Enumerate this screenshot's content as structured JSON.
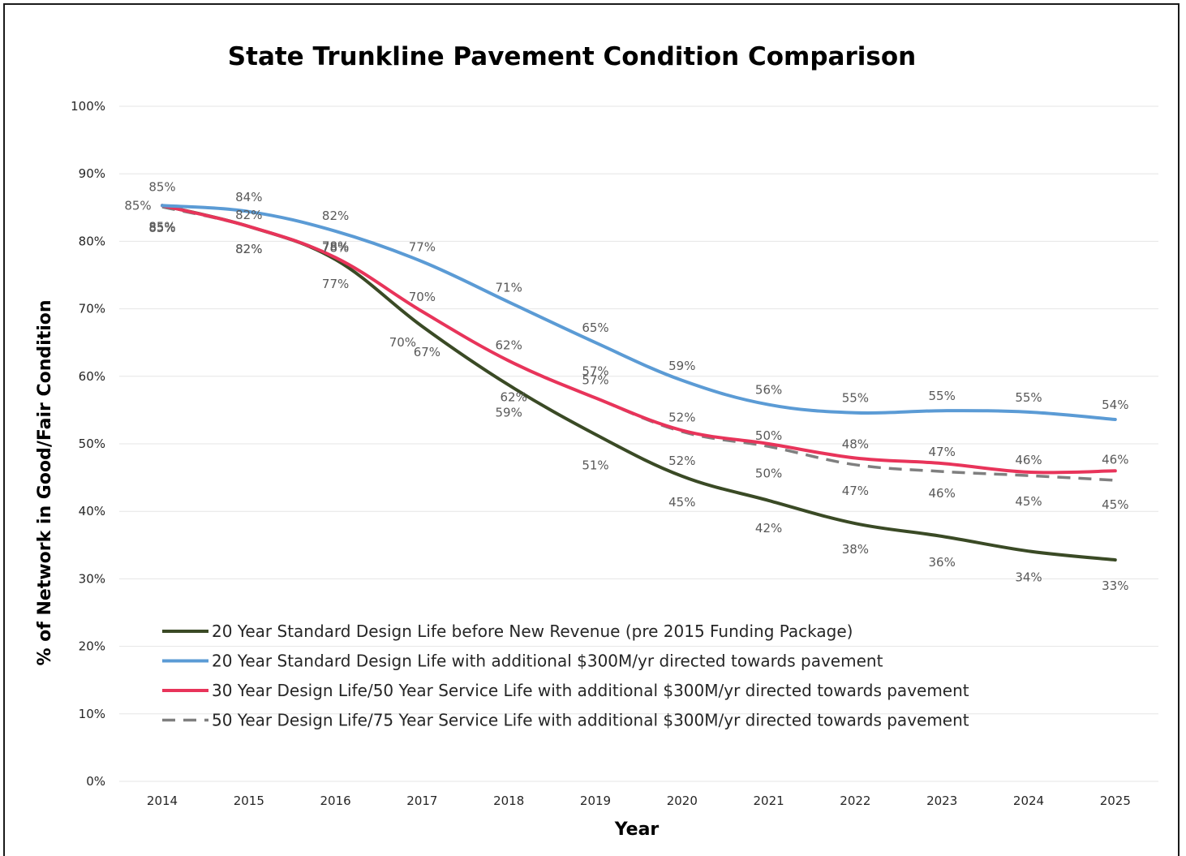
{
  "chart_data": {
    "type": "line",
    "title": "State Trunkline Pavement Condition Comparison",
    "xlabel": "Year",
    "ylabel": "% of Network in Good/Fair Condition",
    "ylim": [
      0,
      100
    ],
    "yticks": [
      "0%",
      "10%",
      "20%",
      "30%",
      "40%",
      "50%",
      "60%",
      "70%",
      "80%",
      "90%",
      "100%"
    ],
    "categories": [
      "2014",
      "2015",
      "2016",
      "2017",
      "2018",
      "2019",
      "2020",
      "2021",
      "2022",
      "2023",
      "2024",
      "2025"
    ],
    "grid": true,
    "legend_position": "bottom-left inside plot",
    "series": [
      {
        "name": "20 Year Standard Design Life before New Revenue (pre 2015 Funding Package)",
        "color": "#3a4a25",
        "dash": "solid",
        "values": [
          85.3,
          82.2,
          77.3,
          67.4,
          58.7,
          51.4,
          45.2,
          41.6,
          38.2,
          36.3,
          34.1,
          32.8
        ],
        "labels": [
          "85%",
          "82%",
          "77%",
          "67%",
          "59%",
          "51%",
          "45%",
          "42%",
          "38%",
          "36%",
          "34%",
          "33%"
        ]
      },
      {
        "name": "20 Year Standard Design Life with additional $300M/yr directed towards pavement",
        "color": "#5b9bd5",
        "dash": "solid",
        "values": [
          85.3,
          84.4,
          81.5,
          77.0,
          71.0,
          65.0,
          59.4,
          55.8,
          54.6,
          54.9,
          54.7,
          53.6
        ],
        "labels": [
          "85%",
          "84%",
          "82%",
          "77%",
          "71%",
          "65%",
          "59%",
          "56%",
          "55%",
          "55%",
          "55%",
          "54%"
        ]
      },
      {
        "name": "30 Year Design Life/50 Year Service Life with additional $300M/yr directed towards pavement",
        "color": "#e8345a",
        "dash": "solid",
        "values": [
          85.3,
          82.2,
          77.6,
          69.6,
          62.3,
          56.8,
          52.0,
          50.0,
          47.9,
          47.1,
          45.8,
          46.0
        ],
        "labels": [
          "85%",
          "82%",
          "78%",
          "70%",
          "62%",
          "57%",
          "52%",
          "50%",
          "48%",
          "47%",
          "46%",
          "46%"
        ]
      },
      {
        "name": "50 Year Design Life/75 Year Service Life with additional $300M/yr directed towards pavement",
        "color": "#7f7f7f",
        "dash": "dashed",
        "values": [
          85.1,
          82.2,
          77.6,
          69.6,
          62.3,
          56.8,
          51.8,
          49.6,
          46.9,
          45.9,
          45.3,
          44.6
        ],
        "labels": [
          "85%",
          "82%",
          "78%",
          "70%",
          "62%",
          "57%",
          "52%",
          "50%",
          "47%",
          "46%",
          "45%",
          "45%"
        ]
      }
    ]
  }
}
